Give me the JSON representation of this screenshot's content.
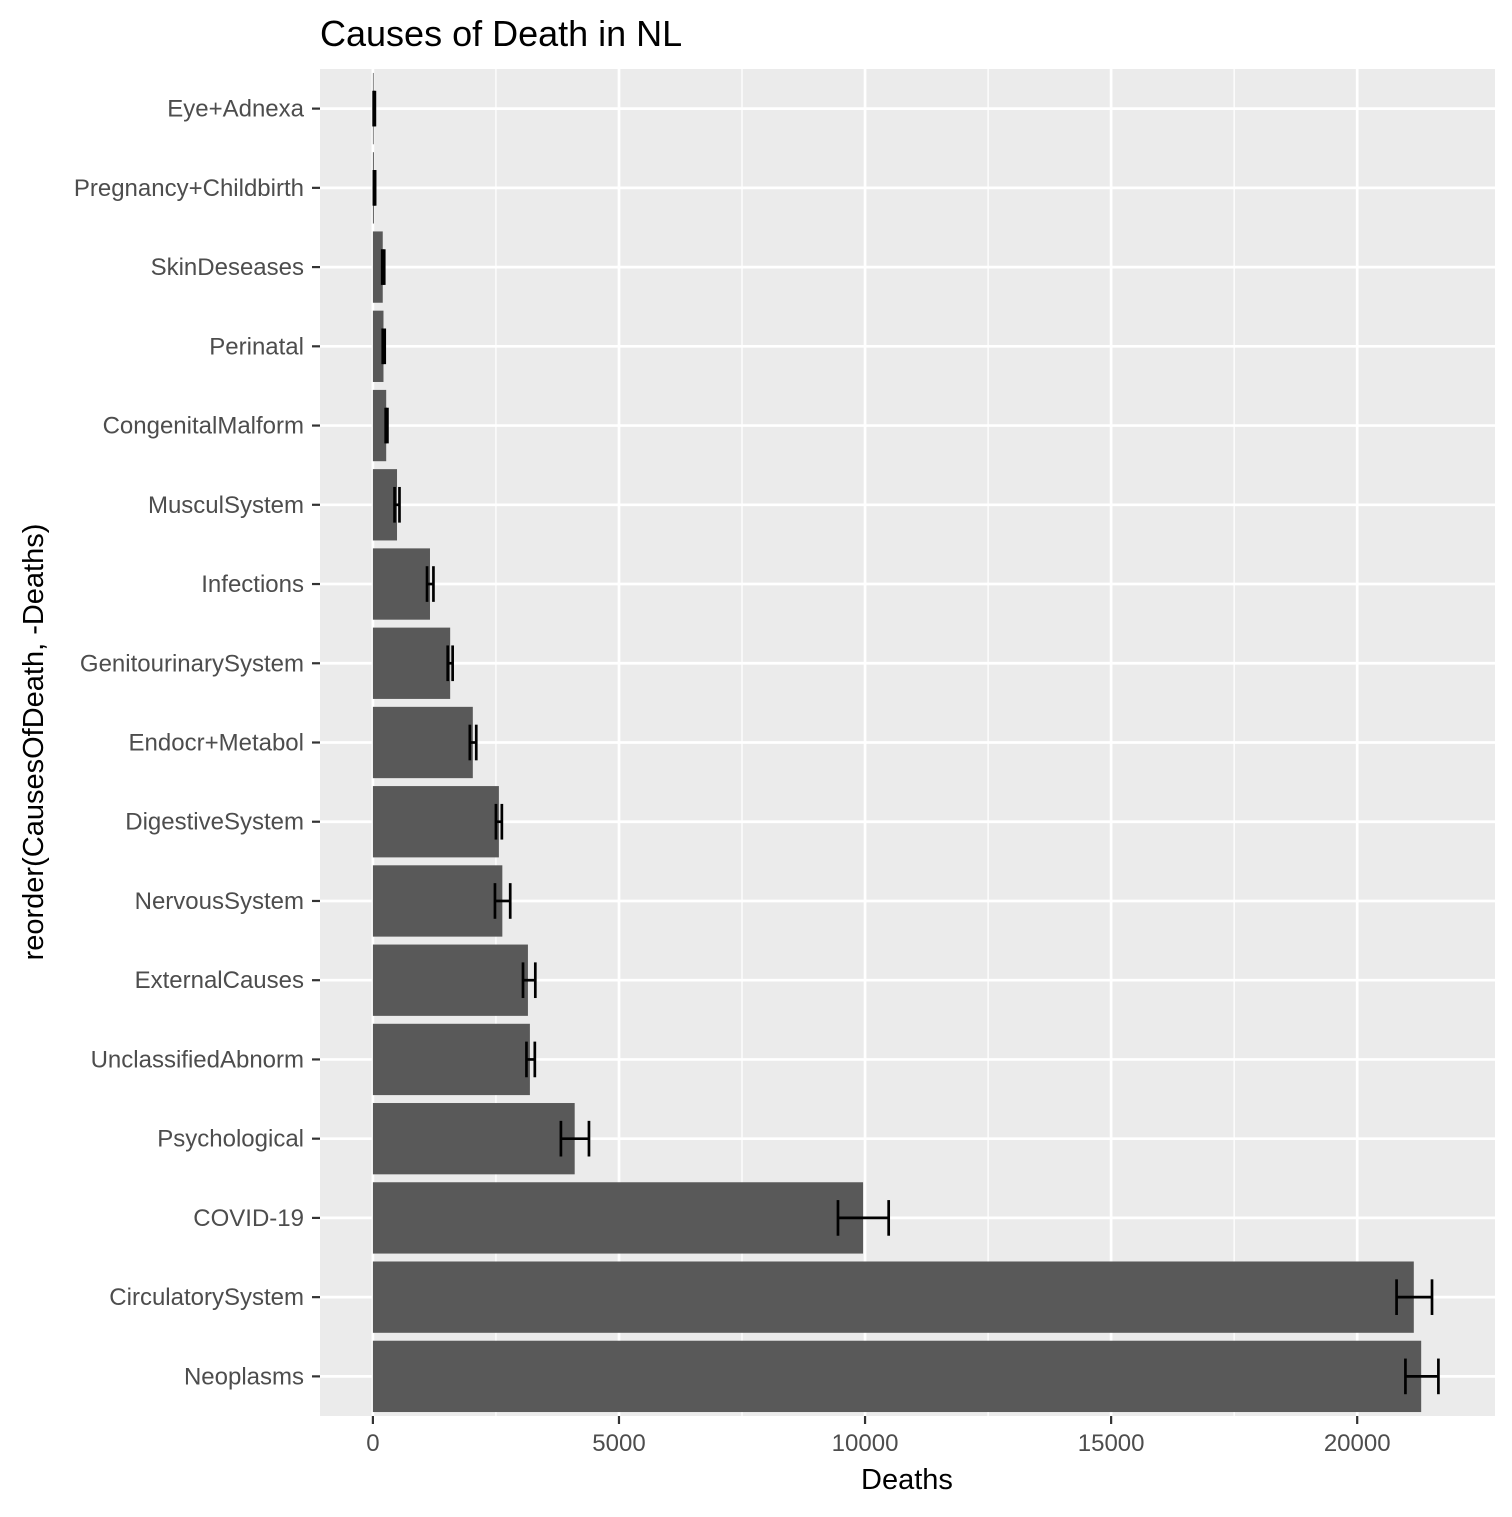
{
  "chart_data": {
    "type": "bar",
    "orientation": "horizontal",
    "title": "Causes of Death in NL",
    "xlabel": "Deaths",
    "ylabel": "reorder(CausesOfDeath, -Deaths)",
    "xlim": [
      -1075,
      22800
    ],
    "x_ticks": [
      0,
      5000,
      10000,
      15000,
      20000
    ],
    "x_tick_labels": [
      "0",
      "5000",
      "10000",
      "15000",
      "20000"
    ],
    "grid": true,
    "legend": "none",
    "categories": [
      "Eye+Adnexa",
      "Pregnancy+Childbirth",
      "SkinDeseases",
      "Perinatal",
      "CongenitalMalform",
      "MusculSystem",
      "Infections",
      "GenitourinarySystem",
      "Endocr+Metabol",
      "DigestiveSystem",
      "NervousSystem",
      "ExternalCauses",
      "UnclassifiedAbnorm",
      "Psychological",
      "COVID-19",
      "CirculatorySystem",
      "Neoplasms"
    ],
    "values": [
      15,
      20,
      200,
      215,
      270,
      490,
      1160,
      1570,
      2030,
      2560,
      2630,
      3150,
      3190,
      4100,
      9960,
      21150,
      21300
    ],
    "error_low": [
      15,
      20,
      190,
      200,
      260,
      440,
      1100,
      1520,
      1970,
      2500,
      2480,
      3050,
      3120,
      3820,
      9450,
      20800,
      20980
    ],
    "error_high": [
      40,
      45,
      230,
      240,
      295,
      540,
      1230,
      1620,
      2100,
      2620,
      2790,
      3300,
      3290,
      4390,
      10480,
      21520,
      21650
    ],
    "colors": {
      "bar": "#595959",
      "errorbar": "#000000",
      "panel": "#ebebeb",
      "grid": "#ffffff",
      "tick_label": "#4d4d4d",
      "tick_mark": "#333333"
    }
  }
}
